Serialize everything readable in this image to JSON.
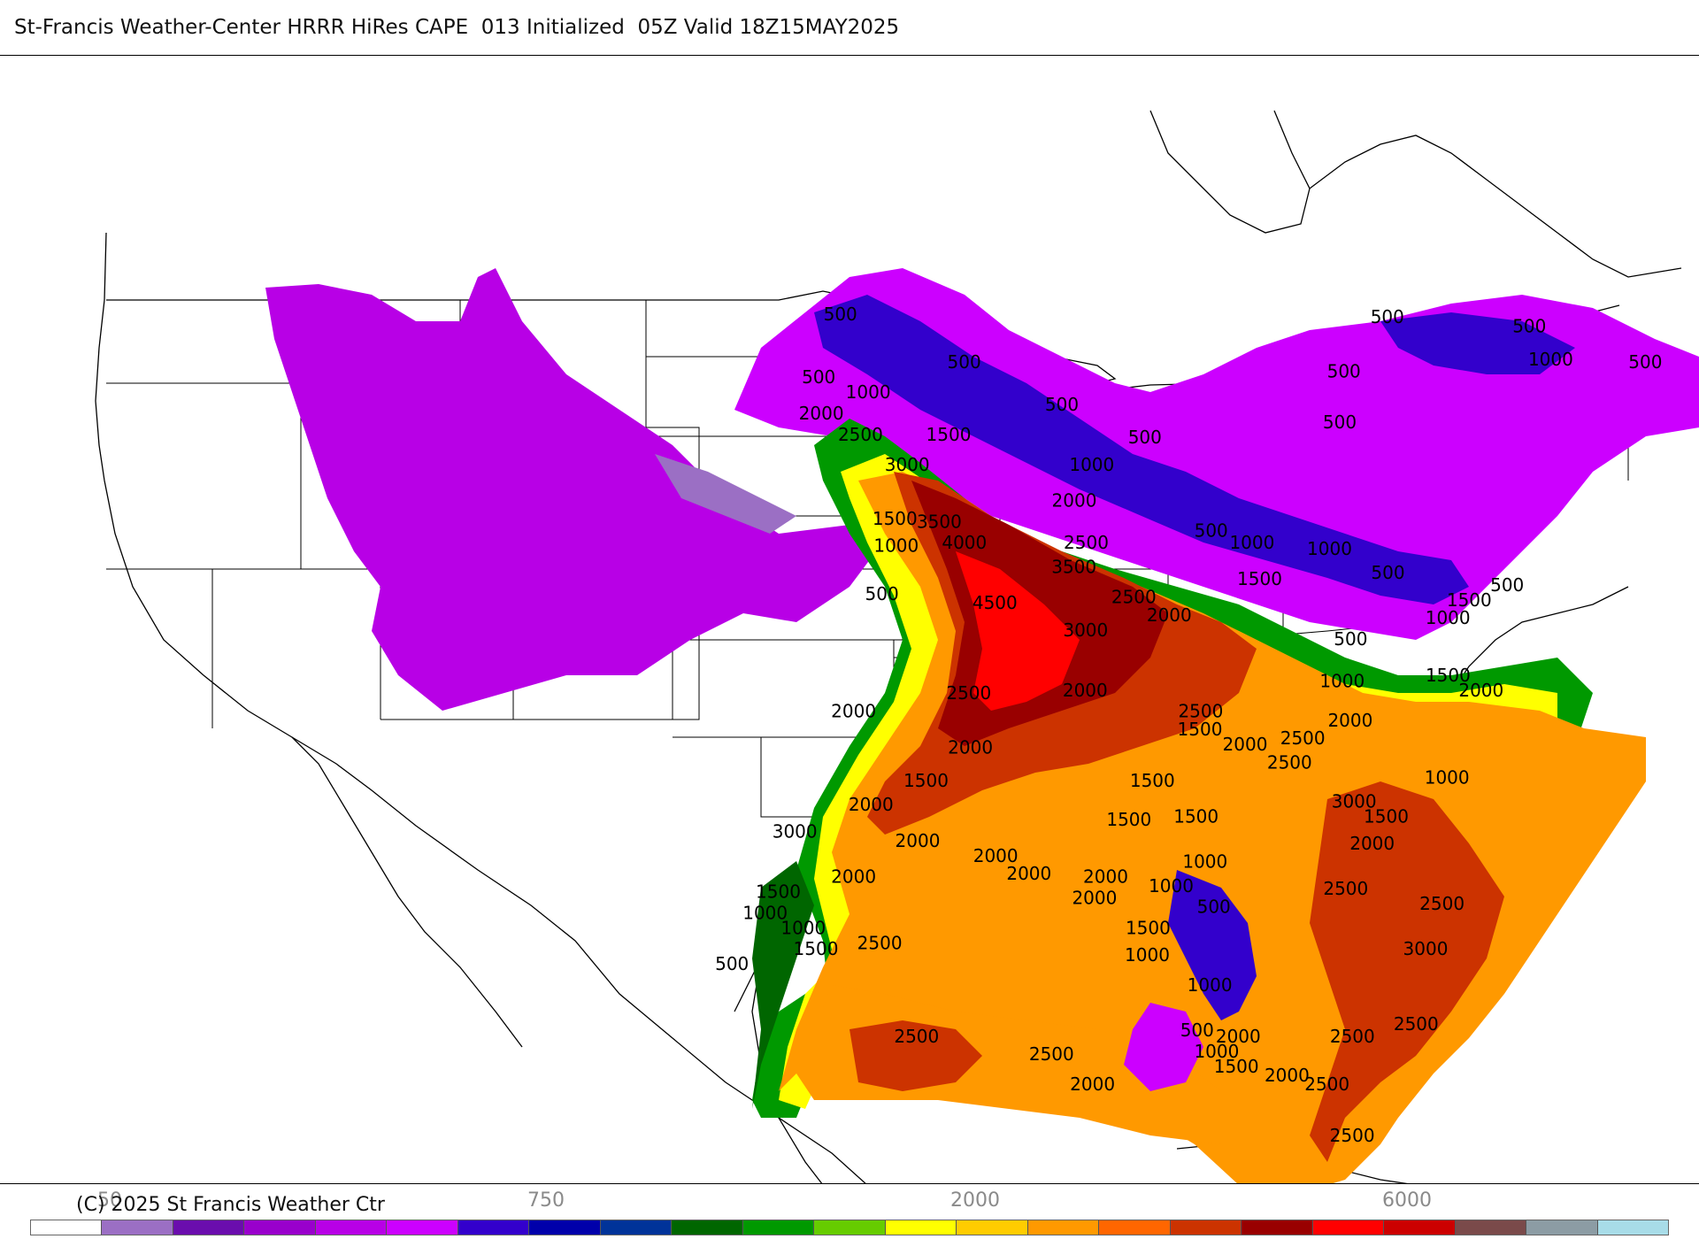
{
  "header": {
    "title": "St-Francis Weather-Center HRRR HiRes CAPE  013 Initialized  05Z Valid 18Z15MAY2025"
  },
  "footer": {
    "copyright": "(C) 2025 St Francis Weather Ctr"
  },
  "legend": {
    "tick_labels": [
      "50",
      "750",
      "2000",
      "6000"
    ],
    "colors": [
      "#ffffff",
      "#9b6fc4",
      "#6a0dad",
      "#9900cc",
      "#b800e6",
      "#cc00ff",
      "#3300cc",
      "#0000aa",
      "#003399",
      "#006600",
      "#009900",
      "#66cc00",
      "#ffff00",
      "#ffcc00",
      "#ff9900",
      "#ff6600",
      "#cc3300",
      "#990000",
      "#ff0000",
      "#cc0000",
      "#7a4a4a",
      "#8c9ca4",
      "#a8dce8"
    ]
  },
  "map": {
    "contour_labels": [
      {
        "text": "500",
        "lon": -96.5,
        "lat": 49.8
      },
      {
        "text": "500",
        "lon": -91.8,
        "lat": 48.2
      },
      {
        "text": "500",
        "lon": -97.5,
        "lat": 47.7
      },
      {
        "text": "1000",
        "lon": -95.6,
        "lat": 47.2
      },
      {
        "text": "2000",
        "lon": -97.5,
        "lat": 46.5
      },
      {
        "text": "2500",
        "lon": -96.0,
        "lat": 45.8
      },
      {
        "text": "1500",
        "lon": -92.5,
        "lat": 45.8
      },
      {
        "text": "3000",
        "lon": -94.2,
        "lat": 44.8
      },
      {
        "text": "500",
        "lon": -88.0,
        "lat": 46.8
      },
      {
        "text": "500",
        "lon": -84.7,
        "lat": 45.7
      },
      {
        "text": "1000",
        "lon": -86.8,
        "lat": 44.8
      },
      {
        "text": "2000",
        "lon": -87.5,
        "lat": 43.6
      },
      {
        "text": "1500",
        "lon": -94.8,
        "lat": 43.0
      },
      {
        "text": "3500",
        "lon": -93.0,
        "lat": 42.9
      },
      {
        "text": "4000",
        "lon": -92.0,
        "lat": 42.2
      },
      {
        "text": "1000",
        "lon": -94.8,
        "lat": 42.1
      },
      {
        "text": "2500",
        "lon": -87.0,
        "lat": 42.2
      },
      {
        "text": "3500",
        "lon": -87.5,
        "lat": 41.4
      },
      {
        "text": "500",
        "lon": -95.5,
        "lat": 40.5
      },
      {
        "text": "4500",
        "lon": -90.8,
        "lat": 40.2
      },
      {
        "text": "2500",
        "lon": -85.0,
        "lat": 40.4
      },
      {
        "text": "2000",
        "lon": -83.5,
        "lat": 39.8
      },
      {
        "text": "3000",
        "lon": -87.0,
        "lat": 39.3
      },
      {
        "text": "500",
        "lon": -81.9,
        "lat": 42.6
      },
      {
        "text": "1000",
        "lon": -80.2,
        "lat": 42.2
      },
      {
        "text": "1000",
        "lon": -77.0,
        "lat": 42.0
      },
      {
        "text": "1500",
        "lon": -79.8,
        "lat": 41.0
      },
      {
        "text": "500",
        "lon": -74.5,
        "lat": 41.2
      },
      {
        "text": "500",
        "lon": -75.8,
        "lat": 39.0
      },
      {
        "text": "1000",
        "lon": -76.0,
        "lat": 37.6
      },
      {
        "text": "1500",
        "lon": -71.5,
        "lat": 37.8
      },
      {
        "text": "2000",
        "lon": -70.0,
        "lat": 37.3
      },
      {
        "text": "1000",
        "lon": -71.8,
        "lat": 39.7
      },
      {
        "text": "1500",
        "lon": -71.0,
        "lat": 40.3
      },
      {
        "text": "500",
        "lon": -69.5,
        "lat": 40.8
      },
      {
        "text": "500",
        "lon": -77.0,
        "lat": 46.2
      },
      {
        "text": "500",
        "lon": -77.0,
        "lat": 47.9
      },
      {
        "text": "1000",
        "lon": -69.0,
        "lat": 48.3
      },
      {
        "text": "500",
        "lon": -70.0,
        "lat": 49.4
      },
      {
        "text": "500",
        "lon": -75.5,
        "lat": 49.7
      },
      {
        "text": "500",
        "lon": -65.3,
        "lat": 48.2
      },
      {
        "text": "2000",
        "lon": -97.0,
        "lat": 36.6
      },
      {
        "text": "2500",
        "lon": -92.0,
        "lat": 37.2
      },
      {
        "text": "2000",
        "lon": -87.0,
        "lat": 37.3
      },
      {
        "text": "2500",
        "lon": -82.0,
        "lat": 36.6
      },
      {
        "text": "1500",
        "lon": -82.0,
        "lat": 36.0
      },
      {
        "text": "2000",
        "lon": -80.0,
        "lat": 35.5
      },
      {
        "text": "2500",
        "lon": -77.5,
        "lat": 35.7
      },
      {
        "text": "2000",
        "lon": -75.5,
        "lat": 36.3
      },
      {
        "text": "2500",
        "lon": -78.0,
        "lat": 34.9
      },
      {
        "text": "3000",
        "lon": -75.0,
        "lat": 33.6
      },
      {
        "text": "1000",
        "lon": -71.0,
        "lat": 34.4
      },
      {
        "text": "1500",
        "lon": -73.5,
        "lat": 33.1
      },
      {
        "text": "2000",
        "lon": -74.0,
        "lat": 32.2
      },
      {
        "text": "2000",
        "lon": -92.0,
        "lat": 35.4
      },
      {
        "text": "1500",
        "lon": -94.0,
        "lat": 34.3
      },
      {
        "text": "2000",
        "lon": -96.5,
        "lat": 33.5
      },
      {
        "text": "3000",
        "lon": -100.0,
        "lat": 32.6
      },
      {
        "text": "2000",
        "lon": -94.5,
        "lat": 32.3
      },
      {
        "text": "2000",
        "lon": -91.0,
        "lat": 31.8
      },
      {
        "text": "2000",
        "lon": -89.5,
        "lat": 31.2
      },
      {
        "text": "2000",
        "lon": -97.5,
        "lat": 31.1
      },
      {
        "text": "1500",
        "lon": -101.0,
        "lat": 30.6
      },
      {
        "text": "1000",
        "lon": -101.7,
        "lat": 29.9
      },
      {
        "text": "2000",
        "lon": -86.0,
        "lat": 31.1
      },
      {
        "text": "2000",
        "lon": -86.5,
        "lat": 30.4
      },
      {
        "text": "1500",
        "lon": -84.0,
        "lat": 34.3
      },
      {
        "text": "1500",
        "lon": -85.0,
        "lat": 33.0
      },
      {
        "text": "1500",
        "lon": -82.0,
        "lat": 33.1
      },
      {
        "text": "1000",
        "lon": -81.5,
        "lat": 31.6
      },
      {
        "text": "1000",
        "lon": -83.0,
        "lat": 30.8
      },
      {
        "text": "500",
        "lon": -81.0,
        "lat": 30.1
      },
      {
        "text": "1500",
        "lon": -84.0,
        "lat": 29.4
      },
      {
        "text": "1000",
        "lon": -84.0,
        "lat": 28.5
      },
      {
        "text": "1000",
        "lon": -81.0,
        "lat": 27.5
      },
      {
        "text": "2500",
        "lon": -75.0,
        "lat": 30.7
      },
      {
        "text": "2500",
        "lon": -70.5,
        "lat": 30.2
      },
      {
        "text": "3000",
        "lon": -71.0,
        "lat": 28.7
      },
      {
        "text": "1000",
        "lon": -100.0,
        "lat": 29.4
      },
      {
        "text": "1500",
        "lon": -99.5,
        "lat": 28.7
      },
      {
        "text": "2500",
        "lon": -96.5,
        "lat": 28.9
      },
      {
        "text": "500",
        "lon": -103.5,
        "lat": 28.2
      },
      {
        "text": "2500",
        "lon": -95.0,
        "lat": 25.8
      },
      {
        "text": "2500",
        "lon": -88.5,
        "lat": 25.2
      },
      {
        "text": "2000",
        "lon": -86.5,
        "lat": 24.2
      },
      {
        "text": "500",
        "lon": -81.5,
        "lat": 26.0
      },
      {
        "text": "2000",
        "lon": -79.5,
        "lat": 25.8
      },
      {
        "text": "1000",
        "lon": -80.5,
        "lat": 25.3
      },
      {
        "text": "1500",
        "lon": -79.5,
        "lat": 24.8
      },
      {
        "text": "2500",
        "lon": -74.0,
        "lat": 25.8
      },
      {
        "text": "2500",
        "lon": -71.0,
        "lat": 26.2
      },
      {
        "text": "2000",
        "lon": -77.0,
        "lat": 24.5
      },
      {
        "text": "2500",
        "lon": -75.0,
        "lat": 24.2
      },
      {
        "text": "2500",
        "lon": -73.5,
        "lat": 22.5
      }
    ]
  }
}
